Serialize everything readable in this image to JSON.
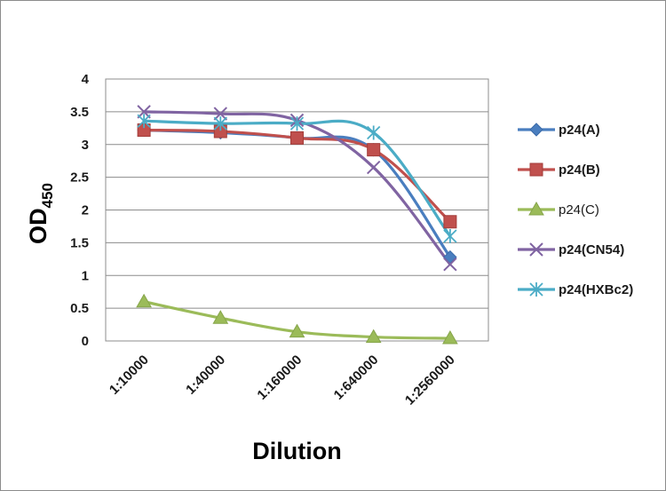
{
  "chart_data": {
    "type": "line",
    "title": "",
    "xlabel": "Dilution",
    "ylabel_main": "OD",
    "ylabel_sub": "450",
    "categories": [
      "1:10000",
      "1:40000",
      "1:160000",
      "1:640000",
      "1:2560000"
    ],
    "ylim": [
      0,
      4
    ],
    "yticks": [
      "0",
      "0.5",
      "1",
      "1.5",
      "2",
      "2.5",
      "3",
      "3.5",
      "4"
    ],
    "grid": true,
    "legend_position": "right",
    "series": [
      {
        "name": "p24(A)",
        "values": [
          3.22,
          3.18,
          3.1,
          2.92,
          1.28
        ],
        "color": "#4a7ebf",
        "marker": "diamond"
      },
      {
        "name": "p24(B)",
        "values": [
          3.22,
          3.2,
          3.1,
          2.92,
          1.82
        ],
        "color": "#c0504d",
        "marker": "square"
      },
      {
        "name": "p24(C)",
        "values": [
          0.6,
          0.35,
          0.14,
          0.06,
          0.04
        ],
        "color": "#9bbb59",
        "marker": "triangle"
      },
      {
        "name": "p24(CN54)",
        "values": [
          3.5,
          3.47,
          3.37,
          2.65,
          1.17
        ],
        "color": "#8064a2",
        "marker": "x"
      },
      {
        "name": "p24(HXBc2)",
        "values": [
          3.36,
          3.32,
          3.32,
          3.18,
          1.6
        ],
        "color": "#4bacc6",
        "marker": "star"
      }
    ]
  }
}
